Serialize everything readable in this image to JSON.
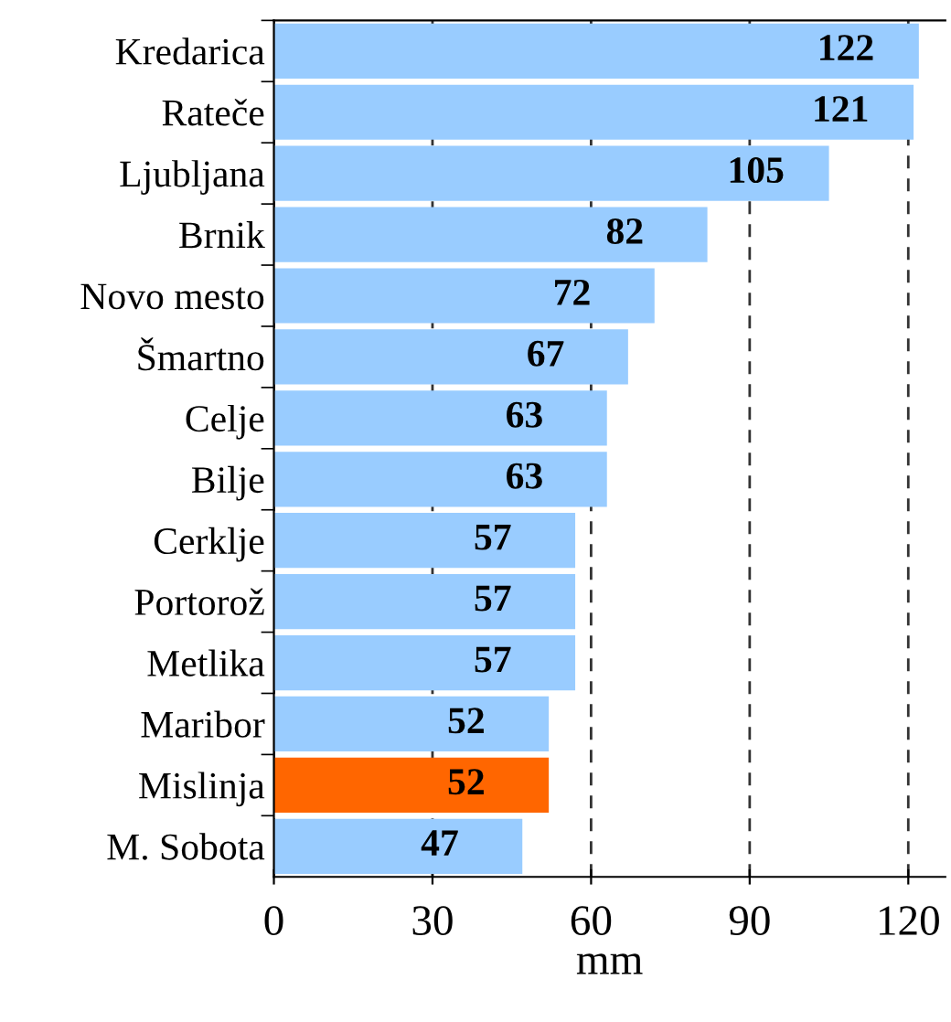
{
  "chart_data": {
    "type": "bar",
    "orientation": "horizontal",
    "xlabel": "mm",
    "categories": [
      "Kredarica",
      "Rateče",
      "Ljubljana",
      "Brnik",
      "Novo mesto",
      "Šmartno",
      "Celje",
      "Bilje",
      "Cerklje",
      "Portorož",
      "Metlika",
      "Maribor",
      "Mislinja",
      "M. Sobota"
    ],
    "values": [
      122,
      121,
      105,
      82,
      72,
      67,
      63,
      63,
      57,
      57,
      57,
      52,
      52,
      47
    ],
    "colors": [
      "#99ccff",
      "#99ccff",
      "#99ccff",
      "#99ccff",
      "#99ccff",
      "#99ccff",
      "#99ccff",
      "#99ccff",
      "#99ccff",
      "#99ccff",
      "#99ccff",
      "#99ccff",
      "#ff6600",
      "#99ccff"
    ],
    "xlim": [
      0,
      127
    ],
    "xticks": [
      0,
      30,
      60,
      90,
      120
    ],
    "grid": "x",
    "data_labels": true
  }
}
